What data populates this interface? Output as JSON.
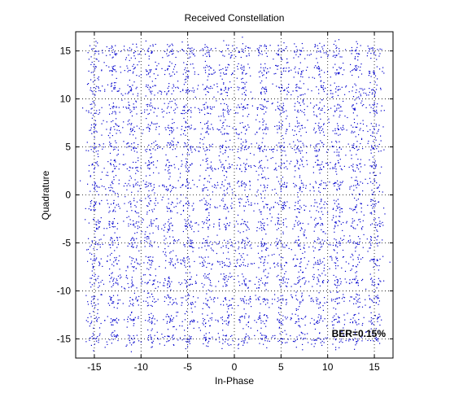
{
  "chart_data": {
    "type": "scatter",
    "title": "Received Constellation",
    "xlabel": "In-Phase",
    "ylabel": "Quadrature",
    "xlim": [
      -17,
      17
    ],
    "ylim": [
      -17,
      17
    ],
    "xticks": [
      -15,
      -10,
      -5,
      0,
      5,
      10,
      15
    ],
    "yticks": [
      -15,
      -10,
      -5,
      0,
      5,
      10,
      15
    ],
    "grid": true,
    "grid_style": "dotted",
    "constellation_levels": [
      -15,
      -13,
      -11,
      -9,
      -7,
      -5,
      -3,
      -1,
      1,
      3,
      5,
      7,
      9,
      11,
      13,
      15
    ],
    "points_per_symbol": 20,
    "noise_spread": 0.45,
    "annotation": "BER=0.15%",
    "marker_color": "#0000cc"
  }
}
